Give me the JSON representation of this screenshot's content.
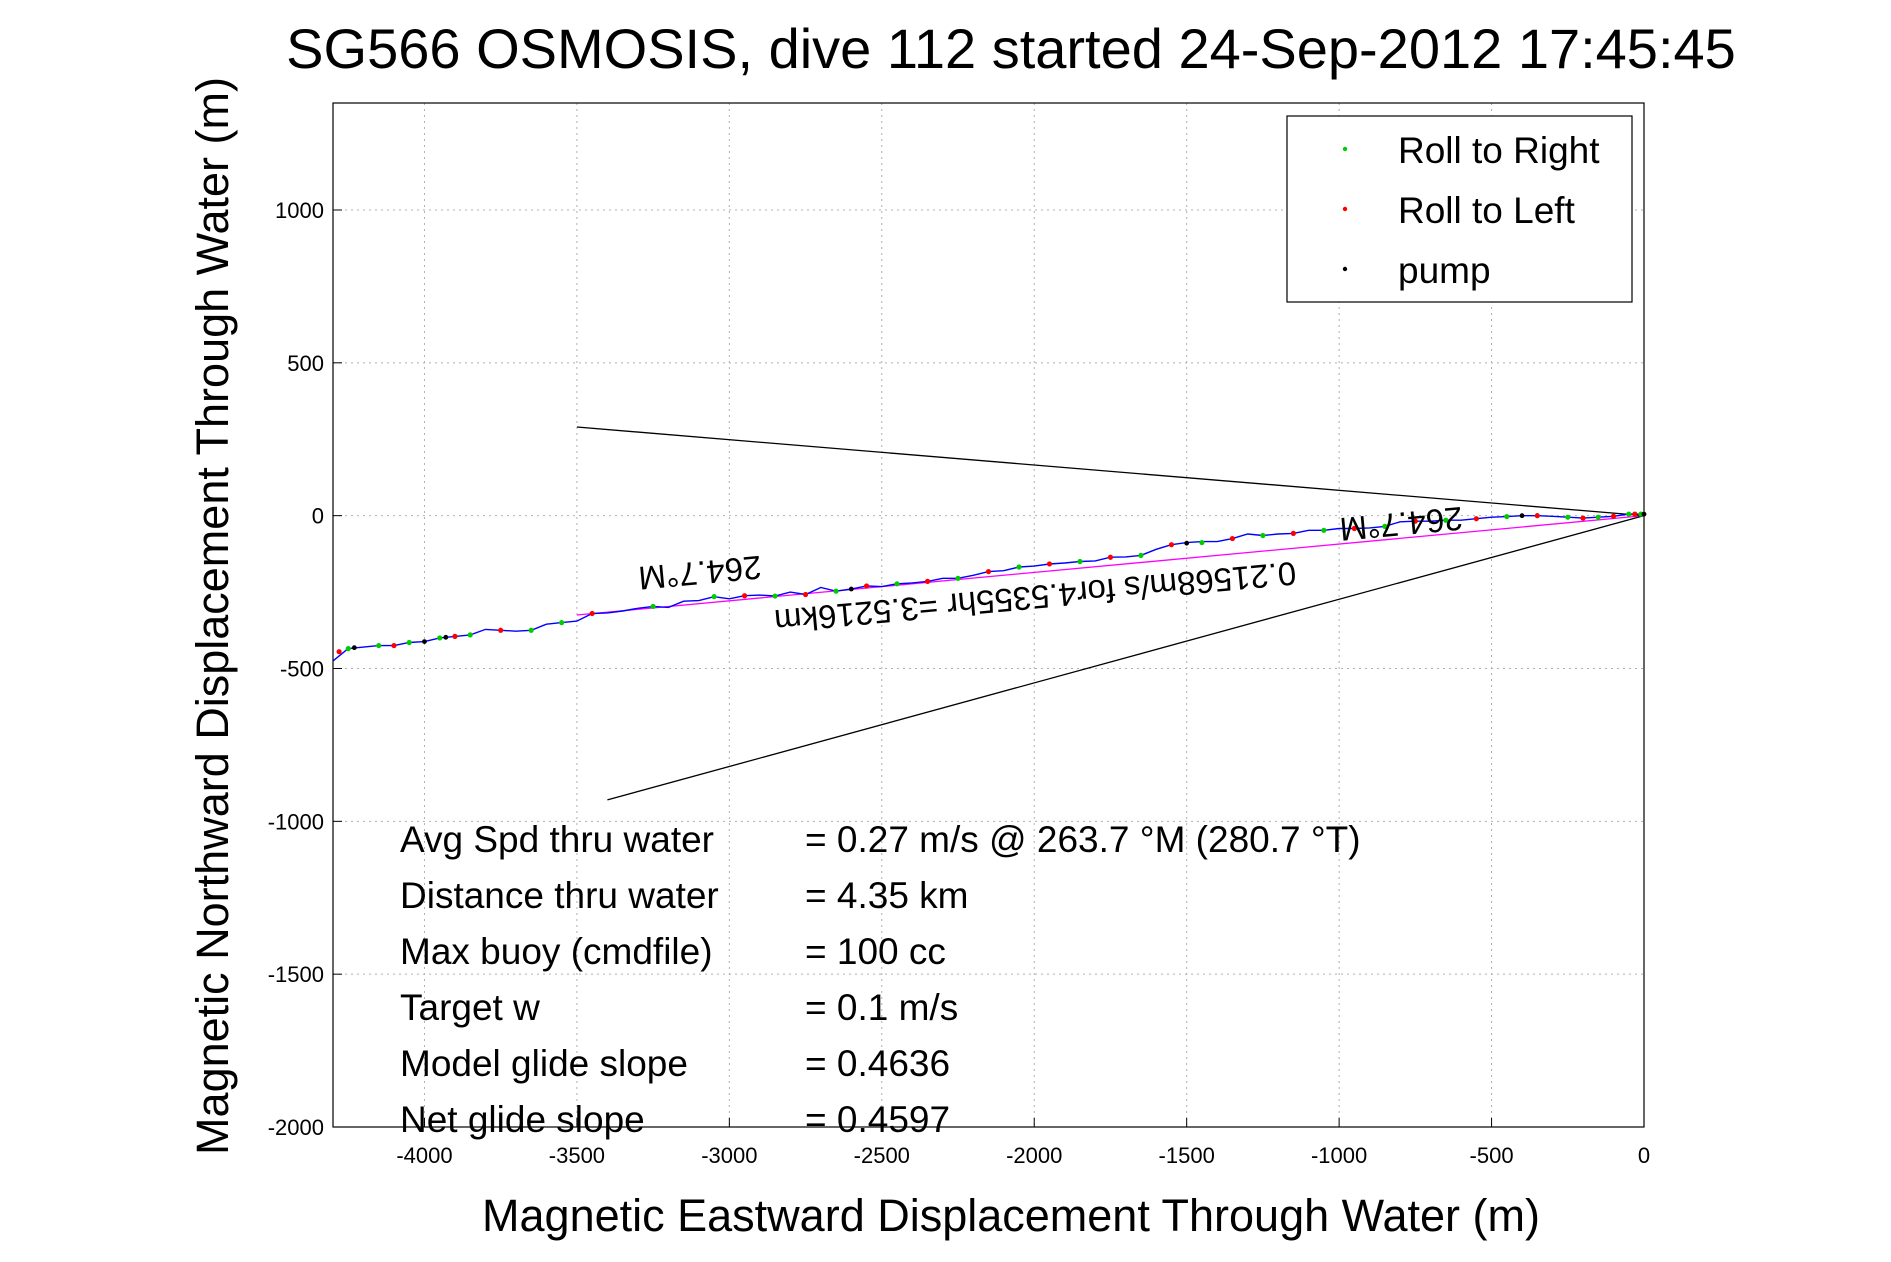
{
  "chart_data": {
    "type": "scatter",
    "title": "SG566 OSMOSIS, dive 112 started 24-Sep-2012 17:45:45",
    "xlabel": "Magnetic Eastward Displacement Through Water (m)",
    "ylabel": "Magnetic Northward Displacement Through Water (m)",
    "xlim": [
      -4300,
      0
    ],
    "ylim": [
      -2000,
      1350
    ],
    "xticks": [
      -4000,
      -3500,
      -3000,
      -2500,
      -2000,
      -1500,
      -1000,
      -500,
      0
    ],
    "yticks": [
      -2000,
      -1500,
      -1000,
      -500,
      0,
      500,
      1000
    ],
    "grid": true,
    "legend_position": "top-right",
    "legend": [
      {
        "label": "Roll to Right",
        "color": "#00cc00"
      },
      {
        "label": "Roll to Left",
        "color": "#ff0000"
      },
      {
        "label": "pump",
        "color": "#000000"
      }
    ],
    "track": {
      "color": "#0000ff",
      "x": [
        -4300,
        -4250,
        -4200,
        -4150,
        -4100,
        -4050,
        -4000,
        -3950,
        -3900,
        -3850,
        -3800,
        -3750,
        -3700,
        -3650,
        -3600,
        -3550,
        -3500,
        -3450,
        -3400,
        -3350,
        -3300,
        -3250,
        -3200,
        -3150,
        -3100,
        -3050,
        -3000,
        -2950,
        -2900,
        -2850,
        -2800,
        -2750,
        -2700,
        -2650,
        -2600,
        -2550,
        -2500,
        -2450,
        -2400,
        -2350,
        -2300,
        -2250,
        -2200,
        -2150,
        -2100,
        -2050,
        -2000,
        -1950,
        -1900,
        -1850,
        -1800,
        -1750,
        -1700,
        -1650,
        -1600,
        -1550,
        -1500,
        -1450,
        -1400,
        -1350,
        -1300,
        -1250,
        -1200,
        -1150,
        -1100,
        -1050,
        -1000,
        -950,
        -900,
        -850,
        -800,
        -750,
        -700,
        -650,
        -600,
        -550,
        -500,
        -450,
        -400,
        -350,
        -300,
        -250,
        -200,
        -150,
        -100,
        -50,
        0
      ],
      "y": [
        -475,
        -435,
        -430,
        -425,
        -425,
        -415,
        -412,
        -400,
        -395,
        -390,
        -372,
        -375,
        -378,
        -375,
        -355,
        -350,
        -345,
        -320,
        -318,
        -312,
        -303,
        -297,
        -300,
        -280,
        -278,
        -265,
        -272,
        -262,
        -260,
        -263,
        -250,
        -258,
        -235,
        -247,
        -240,
        -230,
        -232,
        -223,
        -220,
        -215,
        -205,
        -205,
        -195,
        -183,
        -180,
        -168,
        -165,
        -158,
        -155,
        -150,
        -148,
        -136,
        -135,
        -130,
        -110,
        -95,
        -88,
        -85,
        -85,
        -75,
        -60,
        -65,
        -60,
        -58,
        -48,
        -48,
        -42,
        -42,
        -40,
        -35,
        -20,
        -18,
        -18,
        -15,
        -15,
        -10,
        -5,
        -3,
        0,
        0,
        -2,
        -5,
        -8,
        -5,
        -2,
        5,
        5
      ]
    },
    "roll_right": {
      "x": [
        -4250,
        -4150,
        -4050,
        -3950,
        -3850,
        -3650,
        -3550,
        -3250,
        -3050,
        -2850,
        -2650,
        -2450,
        -2250,
        -2050,
        -1850,
        -1650,
        -1450,
        -1250,
        -1050,
        -850,
        -650,
        -450,
        -250,
        -150,
        -50,
        -10
      ],
      "y": [
        -435,
        -425,
        -415,
        -400,
        -390,
        -375,
        -350,
        -297,
        -265,
        -263,
        -247,
        -223,
        -205,
        -168,
        -150,
        -130,
        -88,
        -65,
        -48,
        -35,
        -15,
        -3,
        -5,
        -5,
        5,
        5
      ]
    },
    "roll_left": {
      "x": [
        -4280,
        -4100,
        -3900,
        -3750,
        -3450,
        -2950,
        -2750,
        -2550,
        -2350,
        -2150,
        -1950,
        -1750,
        -1550,
        -1350,
        -1150,
        -950,
        -750,
        -550,
        -350,
        -200,
        -100,
        -30
      ],
      "y": [
        -445,
        -425,
        -395,
        -375,
        -320,
        -262,
        -258,
        -230,
        -215,
        -183,
        -158,
        -136,
        -95,
        -75,
        -58,
        -42,
        -18,
        -10,
        0,
        -8,
        -2,
        5
      ]
    },
    "pump": {
      "x": [
        -4230,
        -4000,
        -3930,
        -2600,
        -1500,
        -400,
        0
      ],
      "y": [
        -432,
        -412,
        -398,
        -240,
        -90,
        0,
        5
      ]
    },
    "reference_lines": [
      {
        "color": "#ff00ff",
        "x": [
          -3500,
          0
        ],
        "y": [
          -325,
          0
        ]
      },
      {
        "color": "#000000",
        "x": [
          -3500,
          0
        ],
        "y": [
          290,
          0
        ]
      },
      {
        "color": "#000000",
        "x": [
          -3400,
          0
        ],
        "y": [
          -930,
          0
        ]
      }
    ],
    "annotations": [
      {
        "text": "264.7°M",
        "x": -3100,
        "y": -150,
        "upside_down": true
      },
      {
        "text": "0.21568m/s for4.5355hr =3.5216km",
        "x": -2000,
        "y": -230,
        "upside_down": true
      },
      {
        "text": "264.7°M",
        "x": -800,
        "y": 10,
        "upside_down": true
      }
    ]
  },
  "stats": [
    {
      "label": "Avg Spd thru water",
      "value": "=  0.27 m/s @ 263.7 °M (280.7 °T)"
    },
    {
      "label": "Distance thru water",
      "value": "=  4.35 km"
    },
    {
      "label": "Max buoy (cmdfile)",
      "value": "= 100 cc"
    },
    {
      "label": "Target w",
      "value": "= 0.1 m/s"
    },
    {
      "label": "Model glide slope",
      "value": "= 0.4636"
    },
    {
      "label": "Net glide slope",
      "value": "= 0.4597"
    }
  ]
}
